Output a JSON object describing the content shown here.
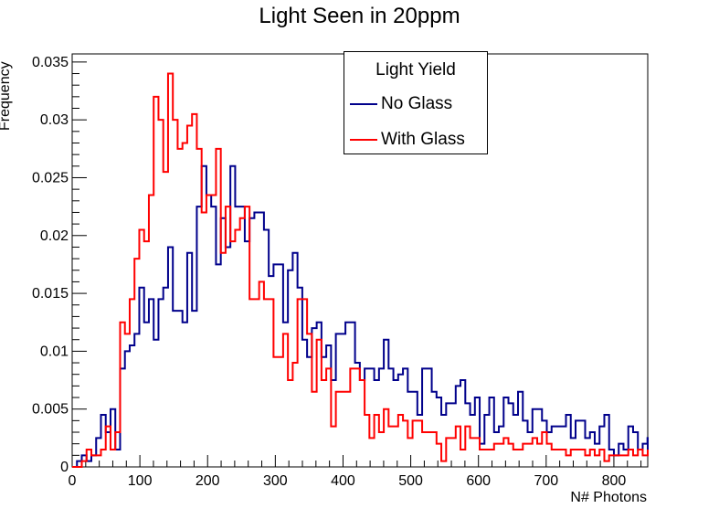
{
  "chart_data": {
    "type": "histogram",
    "title": "Light Seen in 20ppm",
    "xlabel": "N# Photons",
    "ylabel": "Frequency",
    "xlim": [
      0,
      850
    ],
    "ylim": [
      0,
      0.0357
    ],
    "bin_width": 7.08,
    "x_ticks": [
      0,
      100,
      200,
      300,
      400,
      500,
      600,
      700,
      800
    ],
    "y_ticks": [
      0,
      0.005,
      0.01,
      0.015,
      0.02,
      0.025,
      0.03,
      0.035
    ],
    "y_tick_labels": [
      "0",
      "0.005",
      "0.01",
      "0.015",
      "0.02",
      "0.025",
      "0.03",
      "0.035"
    ],
    "legend": {
      "title": "Light Yield",
      "position": "top-center"
    },
    "series": [
      {
        "name": "No Glass",
        "color": "#00008b",
        "values": [
          0,
          0.0005,
          0.001,
          0.0005,
          0.001,
          0.0025,
          0.0045,
          0.003,
          0.005,
          0.0015,
          0.0085,
          0.01,
          0.0105,
          0.0115,
          0.0155,
          0.0125,
          0.0145,
          0.011,
          0.0145,
          0.0155,
          0.019,
          0.0135,
          0.0135,
          0.0125,
          0.0185,
          0.0135,
          0.0225,
          0.026,
          0.0235,
          0.0225,
          0.0175,
          0.0215,
          0.019,
          0.026,
          0.0225,
          0.0225,
          0.0195,
          0.0215,
          0.022,
          0.022,
          0.0205,
          0.0165,
          0.0175,
          0.0175,
          0.0125,
          0.017,
          0.0185,
          0.0155,
          0.011,
          0.0095,
          0.012,
          0.0125,
          0.0095,
          0.0105,
          0.0075,
          0.0115,
          0.0115,
          0.0125,
          0.0125,
          0.009,
          0.0075,
          0.0085,
          0.0085,
          0.0075,
          0.0085,
          0.011,
          0.0085,
          0.0075,
          0.008,
          0.0085,
          0.0065,
          0.0065,
          0.0045,
          0.0085,
          0.0085,
          0.0065,
          0.006,
          0.0045,
          0.0055,
          0.0055,
          0.007,
          0.0075,
          0.0055,
          0.0045,
          0.006,
          0.002,
          0.0045,
          0.006,
          0.003,
          0.0035,
          0.006,
          0.0055,
          0.0045,
          0.0065,
          0.004,
          0.003,
          0.005,
          0.005,
          0.004,
          0.003,
          0.0035,
          0.0035,
          0.0035,
          0.0045,
          0.0025,
          0.004,
          0.004,
          0.0025,
          0.003,
          0.002,
          0.0035,
          0.0045,
          0.0015,
          0.001,
          0.002,
          0.0015,
          0.0035,
          0.003,
          0.0015,
          0.002,
          0.0025,
          0.002,
          0.0015,
          0.002
        ]
      },
      {
        "name": "With Glass",
        "color": "#ff0000",
        "values": [
          0,
          0,
          0.0005,
          0.0015,
          0.001,
          0.001,
          0.0015,
          0.0035,
          0.0015,
          0.003,
          0.0125,
          0.0115,
          0.0145,
          0.018,
          0.0205,
          0.0195,
          0.0235,
          0.032,
          0.03,
          0.0255,
          0.034,
          0.03,
          0.0275,
          0.028,
          0.0295,
          0.0305,
          0.0275,
          0.022,
          0.0235,
          0.0235,
          0.0275,
          0.0185,
          0.0225,
          0.0195,
          0.0205,
          0.0215,
          0.0225,
          0.0145,
          0.0145,
          0.016,
          0.0145,
          0.0145,
          0.0095,
          0.0095,
          0.0115,
          0.0075,
          0.009,
          0.0145,
          0.0145,
          0.0115,
          0.0065,
          0.011,
          0.0075,
          0.0085,
          0.0035,
          0.0065,
          0.0065,
          0.0065,
          0.0085,
          0.0085,
          0.0075,
          0.0045,
          0.0025,
          0.0045,
          0.003,
          0.005,
          0.0035,
          0.0035,
          0.0045,
          0.004,
          0.0025,
          0.004,
          0.004,
          0.003,
          0.003,
          0.003,
          0.002,
          0.0005,
          0.0025,
          0.0025,
          0.0035,
          0.0015,
          0.0035,
          0.0025,
          0.0025,
          0.0015,
          0.0015,
          0.0015,
          0.002,
          0.002,
          0.0025,
          0.002,
          0.0015,
          0.0015,
          0.002,
          0.002,
          0.0025,
          0.002,
          0.003,
          0.002,
          0.0015,
          0.0015,
          0.0015,
          0.001,
          0.0015,
          0.0015,
          0.0015,
          0.001,
          0.0015,
          0.001,
          0.0015,
          0.0005,
          0.001,
          0.001,
          0.001,
          0.001,
          0.0015,
          0.001,
          0.0015,
          0.001,
          0.001,
          0.0015,
          0.001,
          0.0015
        ]
      }
    ]
  }
}
